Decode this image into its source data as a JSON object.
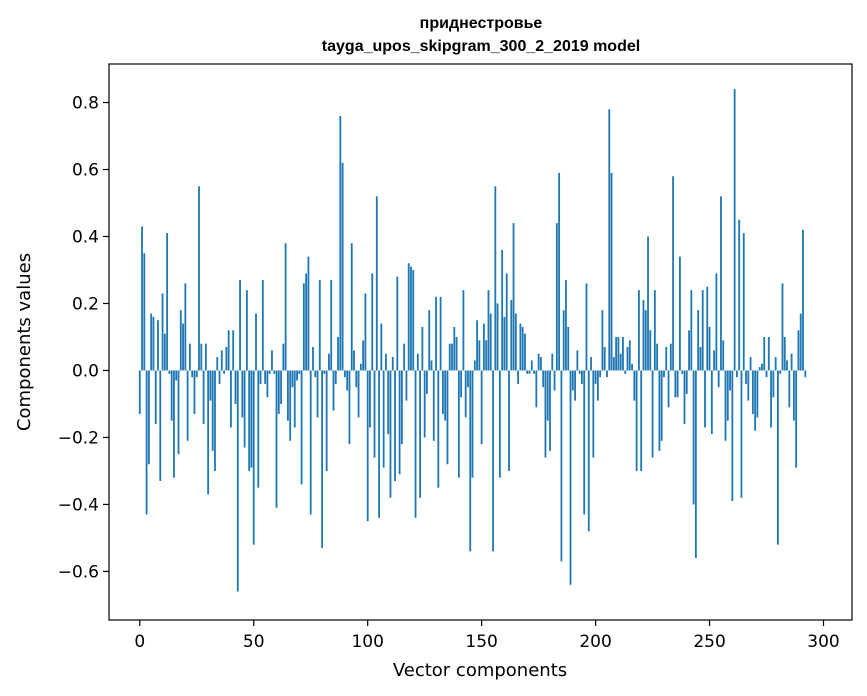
{
  "chart_data": {
    "type": "bar",
    "title": "приднестровье",
    "subtitle": "tayga_upos_skipgram_300_2_2019 model",
    "xlabel": "Vector components",
    "ylabel": "Components values",
    "xlim": [
      -13.5,
      312.5
    ],
    "ylim": [
      -0.745,
      0.915
    ],
    "xticks": [
      0,
      50,
      100,
      150,
      200,
      250,
      300
    ],
    "xtick_labels": [
      "0",
      "50",
      "100",
      "150",
      "200",
      "250",
      "300"
    ],
    "yticks": [
      -0.6,
      -0.4,
      -0.2,
      0.0,
      0.2,
      0.4,
      0.6,
      0.8
    ],
    "ytick_labels": [
      "−0.6",
      "−0.4",
      "−0.2",
      "0.0",
      "0.2",
      "0.4",
      "0.6",
      "0.8"
    ],
    "bar_color": "#1f77b4",
    "grid": false,
    "values": [
      -0.13,
      0.43,
      0.35,
      -0.43,
      -0.28,
      0.17,
      0.16,
      -0.16,
      0.15,
      -0.33,
      0.23,
      0.11,
      0.41,
      -0.01,
      -0.15,
      -0.32,
      -0.03,
      -0.25,
      0.18,
      0.14,
      0.26,
      -0.21,
      0.08,
      -0.02,
      -0.13,
      -0.02,
      0.55,
      0.08,
      -0.16,
      0.08,
      -0.37,
      -0.09,
      -0.24,
      -0.3,
      0.04,
      -0.04,
      0.06,
      -0.01,
      0.07,
      0.12,
      -0.17,
      0.12,
      -0.1,
      -0.66,
      0.27,
      -0.14,
      -0.23,
      0.24,
      -0.3,
      -0.29,
      -0.52,
      0.17,
      -0.35,
      -0.04,
      0.27,
      -0.04,
      -0.08,
      -0.01,
      0.06,
      -0.01,
      -0.41,
      -0.13,
      -0.1,
      0.08,
      0.38,
      -0.15,
      -0.21,
      -0.05,
      -0.17,
      -0.03,
      -0.01,
      -0.34,
      0.26,
      0.29,
      0.34,
      -0.43,
      0.07,
      -0.02,
      -0.14,
      0.27,
      -0.53,
      -0.01,
      -0.3,
      0.05,
      0.27,
      -0.12,
      -0.04,
      0.1,
      0.76,
      0.62,
      -0.02,
      -0.06,
      -0.22,
      0.38,
      0.06,
      -0.05,
      -0.14,
      0.02,
      0.09,
      0.23,
      -0.45,
      -0.17,
      0.29,
      -0.26,
      0.52,
      -0.44,
      0.14,
      -0.29,
      0.05,
      -0.19,
      -0.38,
      0.04,
      -0.33,
      0.28,
      -0.31,
      -0.22,
      0.08,
      -0.09,
      0.32,
      0.31,
      0.3,
      -0.44,
      0.05,
      -0.38,
      0.13,
      -0.2,
      -0.07,
      0.18,
      0.03,
      -0.21,
      0.22,
      -0.35,
      0.22,
      -0.13,
      -0.15,
      -0.28,
      0.08,
      0.08,
      0.13,
      0.1,
      -0.32,
      -0.08,
      0.24,
      -0.14,
      -0.05,
      -0.54,
      -0.32,
      0.03,
      0.15,
      0.09,
      -0.22,
      0.14,
      0.09,
      0.24,
      0.17,
      -0.54,
      0.55,
      0.2,
      -0.32,
      0.36,
      0.16,
      0.29,
      -0.3,
      0.21,
      0.44,
      0.17,
      -0.04,
      0.14,
      0.13,
      0.11,
      -0.01,
      -0.01,
      0.03,
      -0.01,
      -0.11,
      0.05,
      0.04,
      -0.05,
      -0.26,
      -0.15,
      -0.24,
      0.05,
      -0.06,
      0.44,
      0.59,
      -0.57,
      0.18,
      0.27,
      0.13,
      -0.64,
      -0.06,
      -0.09,
      0.06,
      -0.01,
      -0.04,
      -0.43,
      0.26,
      -0.48,
      0.04,
      -0.26,
      -0.04,
      -0.09,
      -0.02,
      0.18,
      0.07,
      -0.02,
      0.78,
      0.59,
      0.04,
      0.1,
      0.1,
      0.05,
      0.1,
      -0.01,
      0.07,
      0.09,
      0.02,
      -0.09,
      -0.3,
      0.24,
      -0.3,
      0.21,
      0.18,
      0.4,
      0.12,
      -0.26,
      0.24,
      0.08,
      -0.24,
      -0.21,
      -0.02,
      0.07,
      -0.11,
      0.08,
      0.58,
      -0.08,
      -0.08,
      0.34,
      -0.01,
      -0.16,
      -0.07,
      0.12,
      0.24,
      -0.4,
      -0.56,
      0.18,
      0.07,
      0.24,
      -0.17,
      0.25,
      0.13,
      -0.19,
      0.06,
      0.29,
      -0.05,
      0.52,
      0.09,
      -0.21,
      -0.15,
      -0.06,
      -0.39,
      0.84,
      -0.02,
      0.45,
      -0.38,
      0.41,
      -0.04,
      -0.09,
      0.04,
      -0.13,
      -0.18,
      -0.14,
      0.01,
      0.02,
      0.1,
      -0.02,
      0.1,
      -0.17,
      -0.08,
      0.04,
      -0.52,
      -0.01,
      0.26,
      0.1,
      0.03,
      -0.11,
      0.05,
      -0.15,
      -0.29,
      0.12,
      0.17,
      0.42,
      -0.02
    ]
  }
}
